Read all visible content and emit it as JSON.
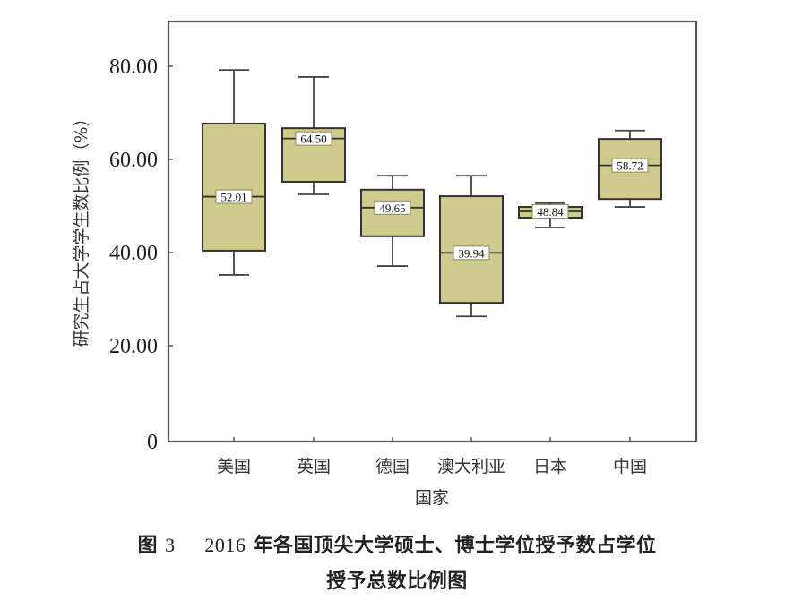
{
  "chart_data": {
    "type": "boxplot",
    "title": "图 3   2016 年各国顶尖大学硕士、博士学位授予数占学位授予总数比例图",
    "xlabel": "国家",
    "ylabel": "研究生占大学学生数比例（%）",
    "ylim": [
      0,
      88
    ],
    "yticks": [
      0,
      20,
      40,
      60,
      80
    ],
    "ytick_labels": [
      "0",
      "20.00",
      "40.00",
      "60.00",
      "80.00"
    ],
    "grid": false,
    "legend": null,
    "box_fill": "#CFCB8C",
    "box_stroke": "#333333",
    "categories": [
      "美国",
      "英国",
      "德国",
      "澳大利亚",
      "日本",
      "中国"
    ],
    "series": [
      {
        "name": "美国",
        "whisker_low": 35.2,
        "q1": 40.4,
        "median": 52.01,
        "q3": 67.7,
        "whisker_high": 79.2,
        "median_label": "52.01"
      },
      {
        "name": "英国",
        "whisker_low": 52.5,
        "q1": 55.2,
        "median": 64.5,
        "q3": 66.7,
        "whisker_high": 77.7,
        "median_label": "64.50"
      },
      {
        "name": "德国",
        "whisker_low": 37.1,
        "q1": 43.5,
        "median": 49.65,
        "q3": 53.5,
        "whisker_high": 56.5,
        "median_label": "49.65"
      },
      {
        "name": "澳大利亚",
        "whisker_low": 26.3,
        "q1": 29.2,
        "median": 39.94,
        "q3": 52.1,
        "whisker_high": 56.5,
        "median_label": "39.94"
      },
      {
        "name": "日本",
        "whisker_low": 45.4,
        "q1": 47.5,
        "median": 48.84,
        "q3": 49.8,
        "whisker_high": 50.6,
        "median_label": "48.84"
      },
      {
        "name": "中国",
        "whisker_low": 49.8,
        "q1": 51.5,
        "median": 58.72,
        "q3": 64.4,
        "whisker_high": 66.2,
        "median_label": "58.72"
      }
    ]
  },
  "caption": {
    "line1_prefix": "图 ",
    "figure_number": "3",
    "line1_year": "2016",
    "line1_text": " 年各国顶尖大学硕士、博士学位授予数占学位",
    "line2": "授予总数比例图"
  }
}
